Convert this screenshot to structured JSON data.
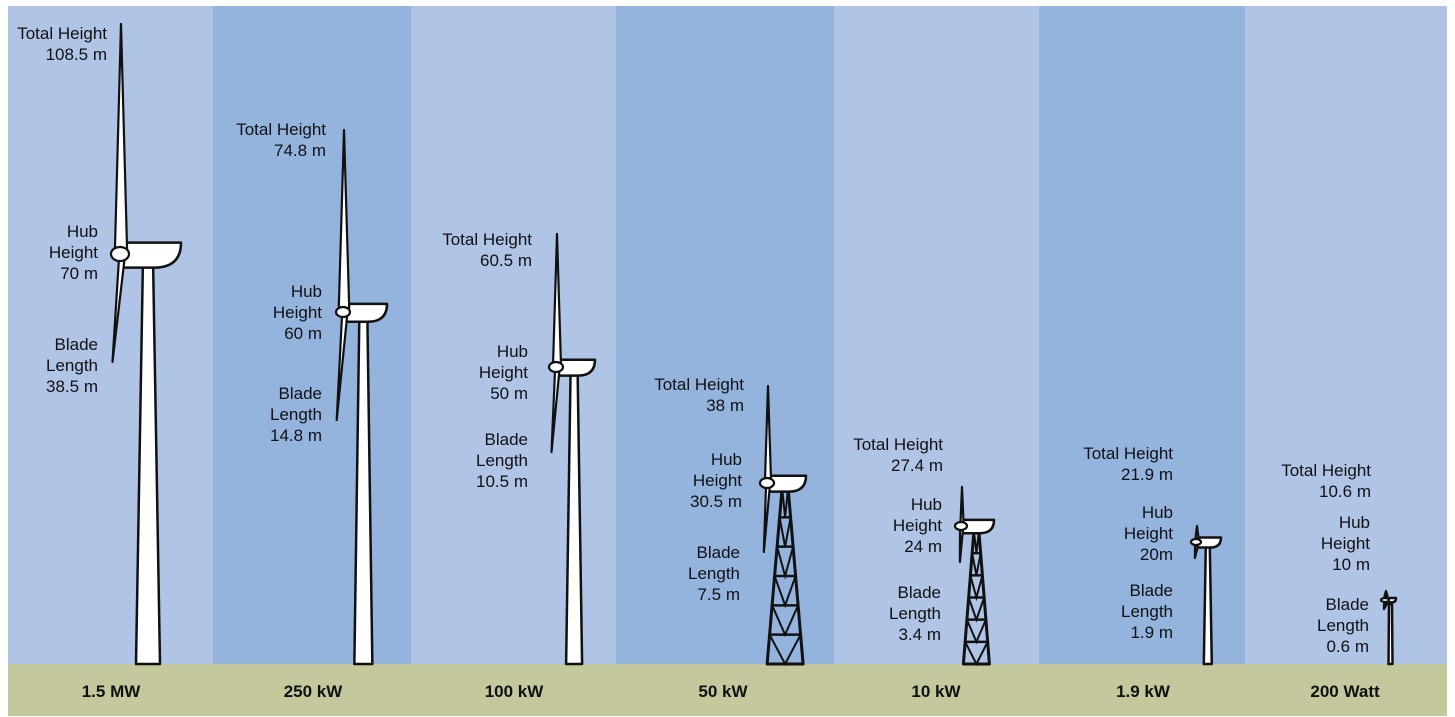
{
  "colors": {
    "band_light": "#b0c4e6",
    "band_dark": "#94b4de",
    "ground": "#c5c89c",
    "turbine_fill": "#ffffff",
    "outline": "#111111"
  },
  "turbines": [
    {
      "power": "1.5 MW",
      "total_label": "Total Height",
      "total_value": "108.5 m",
      "hub_label_1": "Hub",
      "hub_label_2": "Height",
      "hub_value": "70 m",
      "blade_label_1": "Blade",
      "blade_label_2": "Length",
      "blade_value": "38.5 m",
      "tower": "tubular"
    },
    {
      "power": "250 kW",
      "total_label": "Total Height",
      "total_value": "74.8 m",
      "hub_label_1": "Hub",
      "hub_label_2": "Height",
      "hub_value": "60 m",
      "blade_label_1": "Blade",
      "blade_label_2": "Length",
      "blade_value": "14.8 m",
      "tower": "tubular"
    },
    {
      "power": "100 kW",
      "total_label": "Total Height",
      "total_value": "60.5 m",
      "hub_label_1": "Hub",
      "hub_label_2": "Height",
      "hub_value": "50 m",
      "blade_label_1": "Blade",
      "blade_label_2": "Length",
      "blade_value": "10.5 m",
      "tower": "tubular"
    },
    {
      "power": "50 kW",
      "total_label": "Total Height",
      "total_value": "38 m",
      "hub_label_1": "Hub",
      "hub_label_2": "Height",
      "hub_value": "30.5 m",
      "blade_label_1": "Blade",
      "blade_label_2": "Length",
      "blade_value": "7.5 m",
      "tower": "lattice"
    },
    {
      "power": "10 kW",
      "total_label": "Total Height",
      "total_value": "27.4 m",
      "hub_label_1": "Hub",
      "hub_label_2": "Height",
      "hub_value": "24 m",
      "blade_label_1": "Blade",
      "blade_label_2": "Length",
      "blade_value": "3.4 m",
      "tower": "lattice"
    },
    {
      "power": "1.9 kW",
      "total_label": "Total Height",
      "total_value": "21.9 m",
      "hub_label_1": "Hub",
      "hub_label_2": "Height",
      "hub_value": "20m",
      "blade_label_1": "Blade",
      "blade_label_2": "Length",
      "blade_value": "1.9 m",
      "tower": "tubular"
    },
    {
      "power": "200 Watt",
      "total_label": "Total Height",
      "total_value": "10.6 m",
      "hub_label_1": "Hub",
      "hub_label_2": "Height",
      "hub_value": "10 m",
      "blade_label_1": "Blade",
      "blade_label_2": "Length",
      "blade_value": "0.6 m",
      "tower": "pole"
    }
  ]
}
